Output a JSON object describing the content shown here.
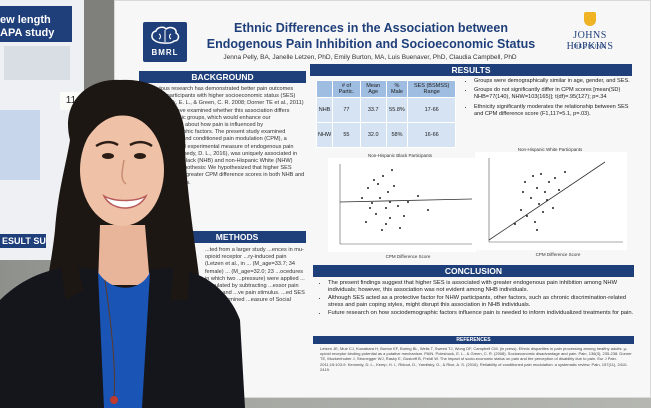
{
  "left_poster": {
    "title_lines": [
      "ew length",
      "APA study"
    ],
    "result_label": "ESULT SU"
  },
  "board_tag": "11",
  "poster": {
    "logo_text": "BMRL",
    "title": "Ethnic Differences in the Association between Endogenous Pain Inhibition and Socioeconomic Status",
    "authors": "Jenna Pelly, BA, Janelle Letzen, PhD, Emily Burton, MA, Luis Buenaver, PhD, Claudia Campbell, PhD",
    "institution": "JOHNS HOPKINS",
    "institution_sub": "MEDICINE",
    "background": {
      "heading": "BACKGROUND",
      "text": "Previous research has demonstrated better pain outcomes among participants with higher socioeconomic status (SES) (Poleshuck, E. L., & Green, C. R. 2008; Dorner TE et al., 2011) ... studies have examined whether this association differs between ethnic groups, which would enhance our understanding about how pain is influenced by sociodemographic factors. The present study examined whether SES and conditioned pain modulation (CPM), a psychophysical experimental measure of endogenous pain inhibition (Kennedy, D. L., 2016), was uniquely associated in non-Hispanic Black (NHB) and non-Hispanic White (NHW) individuals. Hypothesis: We hypothesized that higher SES would relate to greater CPM difference scores in both NHB and NHW individuals."
    },
    "methods": {
      "heading": "METHODS",
      "text": "...ted from a larger study ...ences in mu-opioid receptor ...ry-induced pain (Letzen et al., in ... (M_age=33.7; 34 female) ... (M_age=32.0; 23 ...ocedures in which two ...pressure) were applied ... calculated by subtracting ...essor pain before and ...ve pain stimulus. ...ed SES was determined ...easure of Social Status"
    },
    "results": {
      "heading": "RESULTS",
      "table": {
        "headers": [
          "",
          "# of Partic.",
          "Mean Age",
          "% Male",
          "SES (BSMSS) Range"
        ],
        "rows": [
          [
            "NHB",
            "77",
            "33.7",
            "55.8%",
            "17-66"
          ],
          [
            "NHW",
            "55",
            "32.0",
            "58%",
            "16-66"
          ]
        ]
      },
      "bullets": [
        "Groups were demographically similar in age, gender, and SES.",
        "Groups do not significantly differ in CPM scores [mean(SD) NHB=77(140), NHW=103(165)]; t(df)=.95(127); p=.34",
        "Ethnicity significantly moderates the relationship between SES and CPM difference score (F1,117=5.1, p=.03)."
      ],
      "plot1_title": "Non-Hispanic Black Participants",
      "plot2_title": "Non-Hispanic White Participants",
      "plot_xlabel": "CPM Difference Score",
      "plot_ylabel": "Socioeconomic Status"
    },
    "conclusion": {
      "heading": "CONCLUSION",
      "bullets": [
        "The present findings suggest that higher SES is associated with greater endogenous pain inhibition among NHW individuals; however, this association was not evident among NHB individuals.",
        "Although SES acted as a protective factor for NHW participants, other factors, such as chronic discrimination-related stress and pain coping styles, might disrupt this association in NHB individuals.",
        "Future research on how sociodemographic factors influence pain is needed to inform individualized treatments for pain."
      ]
    },
    "references": {
      "heading": "REFERENCES",
      "text": "Letzen JE, Muir CJ, Kuwabara H, Burton EF, Boring BL, Wells T, Sweed TJ, Wong DF, Campbell CM. (in press). Ethnic disparities in pain processing among healthy adults: μ-opioid receptor binding potential as a putative mechanism. PAIN. Poleshuck, E. L., & Green, C. R. (2008). Socioeconomic disadvantage and pain. Pain, 136(3), 235-238. Dorner TE, Muckenhuber J, Stronegger WJ, Rasky E, Gustorff B, Freidl W. The impact of socio-economic status on pain and the perception of disability due to pain. Eur J Pain. 2011;15:103-9. Kennedy, D. L., Kemp, H. I., Ridout, D., Yarnitsky, D., & Rice, A. S. (2016). Reliability of conditioned pain modulation: a systematic review. Pain, 157(11), 2410-2419."
    }
  },
  "colors": {
    "navy": "#1f3f7a",
    "table_header": "#9fbde0",
    "table_cell": "#d6e3f3",
    "gold": "#f0b323"
  }
}
